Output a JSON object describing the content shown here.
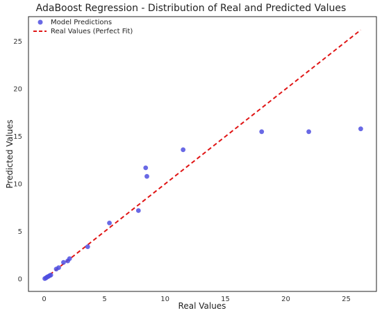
{
  "chart_data": {
    "type": "scatter",
    "title": "AdaBoost Regression - Distribution of Real and Predicted Values",
    "xlabel": "Real Values",
    "ylabel": "Predicted Values",
    "xlim": [
      -1.3,
      27.5
    ],
    "ylim": [
      -1.3,
      27.6
    ],
    "xticks": [
      0,
      5,
      10,
      15,
      20,
      25
    ],
    "yticks": [
      0,
      5,
      10,
      15,
      20,
      25
    ],
    "grid": false,
    "legend_position": "top-left",
    "series": [
      {
        "name": "Model Predictions",
        "kind": "scatter",
        "color": "#4f4fe0",
        "points": [
          [
            0.05,
            0.05
          ],
          [
            0.15,
            0.12
          ],
          [
            0.25,
            0.22
          ],
          [
            0.35,
            0.28
          ],
          [
            0.45,
            0.36
          ],
          [
            0.55,
            0.42
          ],
          [
            1.0,
            1.05
          ],
          [
            1.2,
            1.2
          ],
          [
            1.6,
            1.75
          ],
          [
            1.95,
            1.9
          ],
          [
            2.1,
            2.15
          ],
          [
            3.6,
            3.4
          ],
          [
            5.4,
            5.9
          ],
          [
            7.8,
            7.2
          ],
          [
            8.4,
            11.7
          ],
          [
            8.5,
            10.8
          ],
          [
            11.5,
            13.6
          ],
          [
            18.0,
            15.5
          ],
          [
            21.9,
            15.5
          ],
          [
            26.2,
            15.8
          ]
        ]
      },
      {
        "name": "Real Values (Perfect Fit)",
        "kind": "line",
        "style": "dashed",
        "color": "#e01515",
        "points": [
          [
            0,
            0
          ],
          [
            26.2,
            26.2
          ]
        ]
      }
    ]
  }
}
